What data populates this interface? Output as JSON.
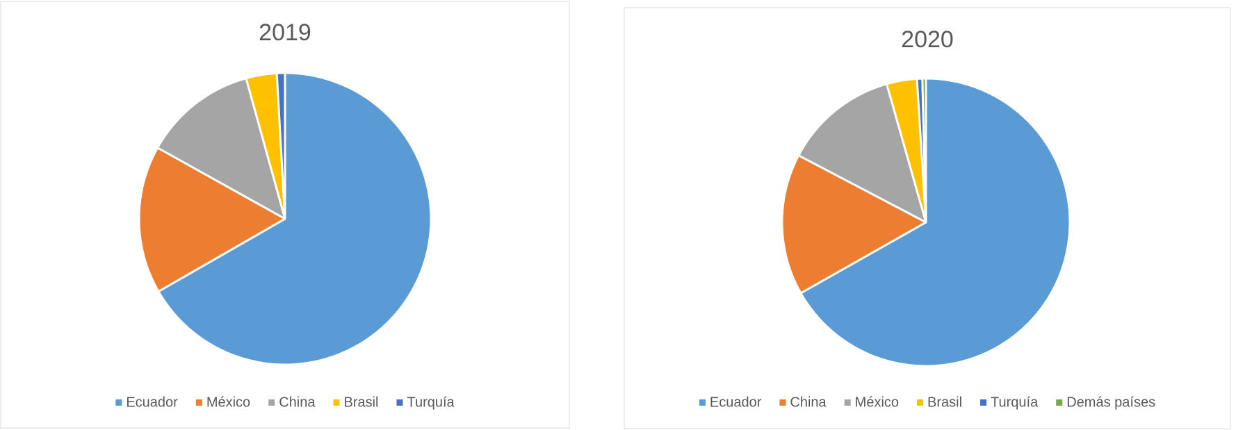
{
  "chart_data": [
    {
      "type": "pie",
      "title": "2019",
      "categories": [
        "Ecuador",
        "México",
        "China",
        "Brasil",
        "Turquía"
      ],
      "values": [
        66.7,
        16.4,
        12.6,
        3.4,
        0.9
      ],
      "colors": [
        "#5b9bd5",
        "#ed7d31",
        "#a5a5a5",
        "#ffc000",
        "#4472c4"
      ],
      "legend": "bottom"
    },
    {
      "type": "pie",
      "title": "2020",
      "categories": [
        "Ecuador",
        "China",
        "México",
        "Brasil",
        "Turquía",
        "Demás países"
      ],
      "values": [
        66.8,
        15.9,
        12.9,
        3.4,
        0.6,
        0.4
      ],
      "colors": [
        "#5b9bd5",
        "#ed7d31",
        "#a5a5a5",
        "#ffc000",
        "#4472c4",
        "#70ad47"
      ],
      "legend": "bottom"
    }
  ]
}
